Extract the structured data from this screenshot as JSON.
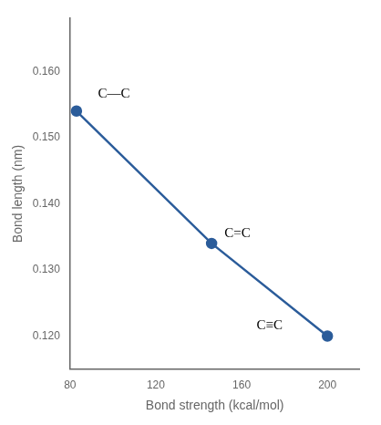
{
  "chart_data": {
    "type": "line",
    "x": [
      83,
      146,
      200
    ],
    "series": [
      {
        "values": [
          0.154,
          0.134,
          0.12
        ],
        "color": "#2b5c9a",
        "marker": "circle"
      }
    ],
    "x_label": "Bond strength (kcal/mol)",
    "y_label": "Bond length (nm)",
    "xlim": [
      80,
      215
    ],
    "ylim": [
      0.115,
      0.168
    ],
    "xticks": [
      80,
      120,
      160,
      200
    ],
    "yticks": [
      {
        "value": 0.12,
        "label": "0.120"
      },
      {
        "value": 0.13,
        "label": "0.130"
      },
      {
        "value": 0.14,
        "label": "0.140"
      },
      {
        "value": 0.15,
        "label": "0.150"
      },
      {
        "value": 0.16,
        "label": "0.160"
      }
    ],
    "grid": false,
    "annotations": [
      {
        "text": "C—C",
        "x": 93,
        "y": 0.1555
      },
      {
        "text": "C=C",
        "x": 152,
        "y": 0.1345
      },
      {
        "text": "C≡C",
        "x": 167,
        "y": 0.1205
      }
    ]
  }
}
